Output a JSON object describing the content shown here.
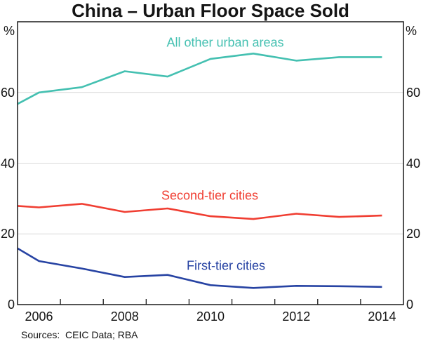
{
  "page": {
    "title": "China – Urban Floor Space Sold"
  },
  "chart_data": {
    "type": "line",
    "title": "China – Urban Floor Space Sold",
    "unit": "%",
    "x": [
      2005,
      2006,
      2007,
      2008,
      2009,
      2010,
      2011,
      2012,
      2013,
      2014
    ],
    "series": [
      {
        "name": "All other urban areas",
        "color": "#44C0B1",
        "values": [
          53.5,
          60.0,
          61.5,
          66.0,
          64.5,
          69.5,
          71.0,
          69.0,
          70.0,
          70.0
        ]
      },
      {
        "name": "Second-tier cities",
        "color": "#F03E32",
        "values": [
          28.3,
          27.5,
          28.5,
          26.2,
          27.2,
          25.0,
          24.2,
          25.7,
          24.8,
          25.2
        ]
      },
      {
        "name": "First-tier cities",
        "color": "#2743A3",
        "values": [
          19.5,
          12.3,
          10.2,
          7.8,
          8.4,
          5.5,
          4.7,
          5.3,
          5.2,
          5.0
        ]
      }
    ],
    "ylim": [
      0,
      80
    ],
    "yticks": [
      0,
      20,
      40,
      60
    ],
    "xlim": [
      2005.5,
      2014.5
    ],
    "xticks": [
      2006.5,
      2007.5,
      2008.5,
      2009.5,
      2010.5,
      2011.5,
      2012.5,
      2013.5
    ],
    "xtick_label_years": [
      2006,
      2008,
      2010,
      2012,
      2014
    ],
    "grid": "horizontal",
    "legend_position": "inline-labels",
    "colors": {
      "frame": "#1A1A1A",
      "grid": "#D9D9D9"
    },
    "sources": "Sources:  CEIC Data; RBA"
  }
}
